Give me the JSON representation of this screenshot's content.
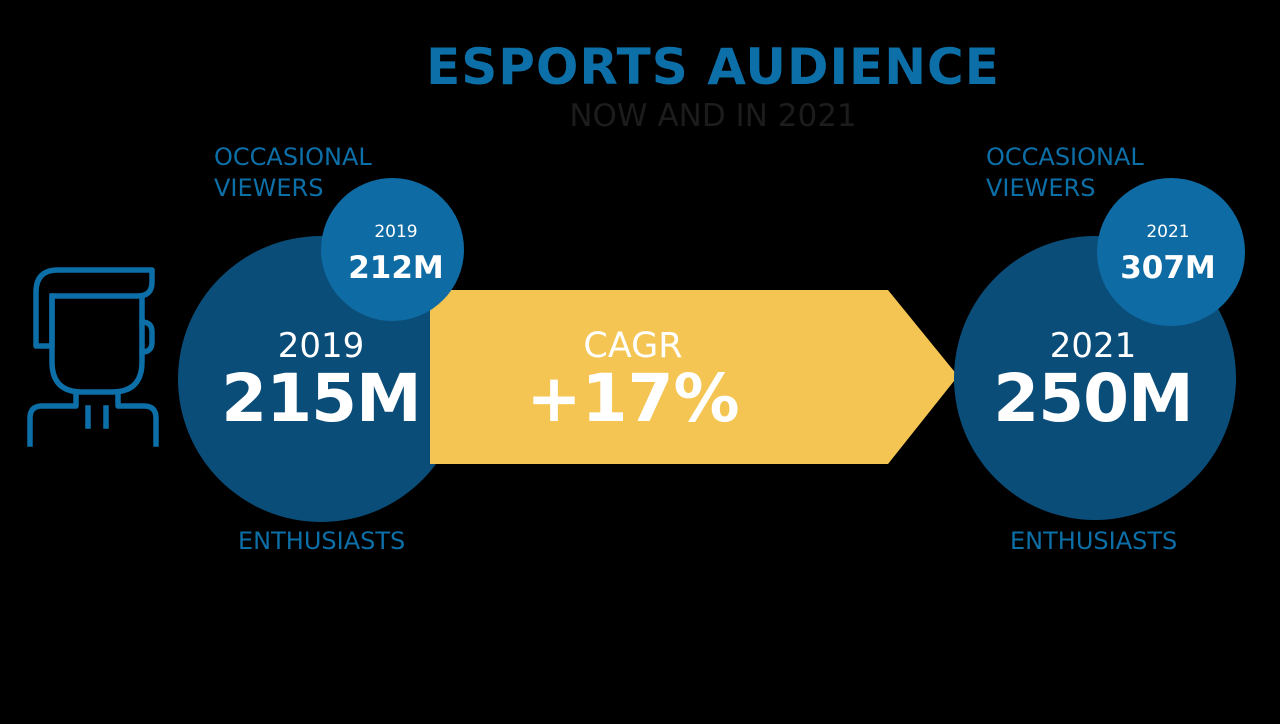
{
  "title": "ESPORTS AUDIENCE",
  "subtitle": "NOW AND IN 2021",
  "colors": {
    "title": "#0d6fa8",
    "enthusiast_circle": "#0a4d79",
    "occasional_circle": "#0e6ba3",
    "arrow": "#f4c552",
    "icon": "#0d6fa8"
  },
  "icon": "user-icon",
  "left": {
    "occasional_label_line1": "OCCASIONAL",
    "occasional_label_line2": "VIEWERS",
    "occasional_year": "2019",
    "occasional_value": "212M",
    "enthusiast_year": "2019",
    "enthusiast_value": "215M",
    "enthusiast_label": "ENTHUSIASTS"
  },
  "arrow": {
    "label": "CAGR",
    "value": "+17%"
  },
  "right": {
    "occasional_label_line1": "OCCASIONAL",
    "occasional_label_line2": "VIEWERS",
    "occasional_year": "2021",
    "occasional_value": "307M",
    "enthusiast_year": "2021",
    "enthusiast_value": "250M",
    "enthusiast_label": "ENTHUSIASTS"
  }
}
